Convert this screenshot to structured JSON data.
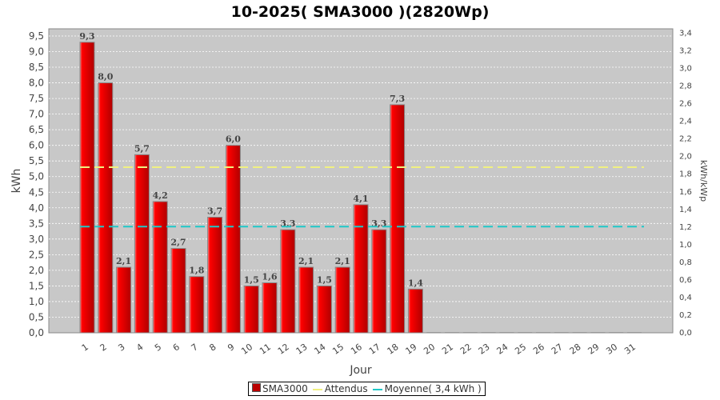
{
  "chart_data": {
    "type": "bar",
    "title": "10-2025( SMA3000 )(2820Wp)",
    "xlabel": "Jour",
    "ylabel": "kWh",
    "y2label": "kWh/kWp",
    "ylim": [
      0,
      9.73
    ],
    "y2lim": [
      0,
      3.45
    ],
    "yticks": [
      "0,0",
      "0,5",
      "1,0",
      "1,5",
      "2,0",
      "2,5",
      "3,0",
      "3,5",
      "4,0",
      "4,5",
      "5,0",
      "5,5",
      "6,0",
      "6,5",
      "7,0",
      "7,5",
      "8,0",
      "8,5",
      "9,0",
      "9,5"
    ],
    "y2ticks": [
      "0,0",
      "0,2",
      "0,4",
      "0,6",
      "0,8",
      "1,0",
      "1,2",
      "1,4",
      "1,6",
      "1,8",
      "2,0",
      "2,2",
      "2,4",
      "2,6",
      "2,8",
      "3,0",
      "3,2",
      "3,4"
    ],
    "categories": [
      "1",
      "2",
      "3",
      "4",
      "5",
      "6",
      "7",
      "8",
      "9",
      "10",
      "11",
      "12",
      "13",
      "14",
      "15",
      "16",
      "17",
      "18",
      "19",
      "20",
      "21",
      "22",
      "23",
      "24",
      "25",
      "26",
      "27",
      "28",
      "29",
      "30",
      "31"
    ],
    "series": [
      {
        "name": "SMA3000",
        "color": "#e00000",
        "values": [
          9.3,
          8.0,
          2.1,
          5.7,
          4.2,
          2.7,
          1.8,
          3.7,
          6.0,
          1.5,
          1.6,
          3.3,
          2.1,
          1.5,
          2.1,
          4.1,
          3.3,
          7.3,
          1.4,
          0,
          0,
          0,
          0,
          0,
          0,
          0,
          0,
          0,
          0,
          0,
          0
        ]
      }
    ],
    "labels": [
      "9,3",
      "8,0",
      "2,1",
      "5,7",
      "4,2",
      "2,7",
      "1,8",
      "3,7",
      "6,0",
      "1,5",
      "1,6",
      "3,3",
      "2,1",
      "1,5",
      "2,1",
      "4,1",
      "3,3",
      "7,3",
      "1,4"
    ],
    "lines": [
      {
        "name": "Attendus",
        "value": 5.3,
        "color": "#f0f080"
      },
      {
        "name": "Moyenne( 3,4 kWh )",
        "value": 3.4,
        "color": "#20c8c8"
      }
    ],
    "grid": true,
    "legend": "bottom"
  }
}
